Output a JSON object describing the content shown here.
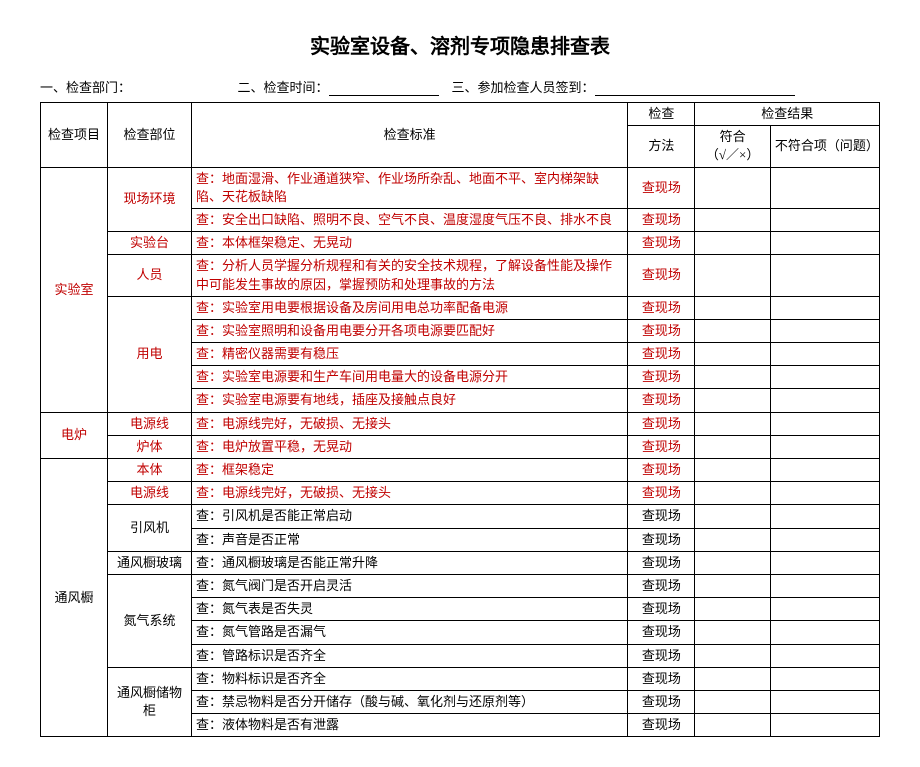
{
  "title": "实验室设备、溶剂专项隐患排查表",
  "info": {
    "dept_label": "一、检查部门：",
    "time_label": "二、检查时间：",
    "sign_label": "三、参加检查人员签到："
  },
  "header": {
    "item": "检查项目",
    "part": "检查部位",
    "standard": "检查标准",
    "method_top": "检查",
    "method_bottom": "方法",
    "result": "检查结果",
    "pass": "符合",
    "pass_sub": "（√／×）",
    "fail": "不符合项（问题）"
  },
  "groups": [
    {
      "item": "实验室",
      "item_red": true,
      "rowspan": 9,
      "parts": [
        {
          "name": "现场环境",
          "name_red": true,
          "rowspan": 2,
          "rows": [
            {
              "std": "查：地面湿滑、作业通道狭窄、作业场所杂乱、地面不平、室内梯架缺陷、天花板缺陷",
              "std_red": true,
              "method": "查现场",
              "method_red": true
            },
            {
              "std": "查：安全出口缺陷、照明不良、空气不良、温度湿度气压不良、排水不良",
              "std_red": true,
              "method": "查现场",
              "method_red": true
            }
          ]
        },
        {
          "name": "实验台",
          "name_red": true,
          "rowspan": 1,
          "rows": [
            {
              "std": "查：本体框架稳定、无晃动",
              "std_red": true,
              "method": "查现场",
              "method_red": true
            }
          ]
        },
        {
          "name": "人员",
          "name_red": true,
          "rowspan": 1,
          "rows": [
            {
              "std": "查：分析人员学握分析规程和有关的安全技术规程，了解设备性能及操作中可能发生事故的原因，掌握预防和处理事故的方法",
              "std_red": true,
              "method": "查现场",
              "method_red": true
            }
          ]
        },
        {
          "name": "用电",
          "name_red": true,
          "rowspan": 5,
          "rows": [
            {
              "std": "查：实验室用电要根据设备及房间用电总功率配备电源",
              "std_red": true,
              "method": "查现场",
              "method_red": true
            },
            {
              "std": "查：实验室照明和设备用电要分开各项电源要匹配好",
              "std_red": true,
              "method": "查现场",
              "method_red": true
            },
            {
              "std": "查：精密仪器需要有稳压",
              "std_red": true,
              "method": "查现场",
              "method_red": true
            },
            {
              "std": "查：实验室电源要和生产车间用电量大的设备电源分开",
              "std_red": true,
              "method": "查现场",
              "method_red": true
            },
            {
              "std": "查：实验室电源要有地线，插座及接触点良好",
              "std_red": true,
              "method": "查现场",
              "method_red": true
            }
          ]
        }
      ]
    },
    {
      "item": "电炉",
      "item_red": true,
      "rowspan": 2,
      "parts": [
        {
          "name": "电源线",
          "name_red": true,
          "rowspan": 1,
          "rows": [
            {
              "std": "查：电源线完好，无破损、无接头",
              "std_red": true,
              "method": "查现场",
              "method_red": true
            }
          ]
        },
        {
          "name": "炉体",
          "name_red": true,
          "rowspan": 1,
          "rows": [
            {
              "std": "查：电炉放置平稳，无晃动",
              "std_red": true,
              "method": "查现场",
              "method_red": true
            }
          ]
        }
      ]
    },
    {
      "item": "通风橱",
      "item_red": false,
      "rowspan": 12,
      "parts": [
        {
          "name": "本体",
          "name_red": true,
          "rowspan": 1,
          "rows": [
            {
              "std": "查：框架稳定",
              "std_red": true,
              "method": "查现场",
              "method_red": true
            }
          ]
        },
        {
          "name": "电源线",
          "name_red": true,
          "rowspan": 1,
          "rows": [
            {
              "std": "查：电源线完好，无破损、无接头",
              "std_red": true,
              "method": "查现场",
              "method_red": true
            }
          ]
        },
        {
          "name": "引风机",
          "name_red": false,
          "rowspan": 2,
          "rows": [
            {
              "std": "查：引风机是否能正常启动",
              "std_red": false,
              "method": "查现场",
              "method_red": false
            },
            {
              "std": "查：声音是否正常",
              "std_red": false,
              "method": "查现场",
              "method_red": false
            }
          ]
        },
        {
          "name": "通风橱玻璃",
          "name_red": false,
          "rowspan": 1,
          "rows": [
            {
              "std": "查：通风橱玻璃是否能正常升降",
              "std_red": false,
              "method": "查现场",
              "method_red": false
            }
          ]
        },
        {
          "name": "氮气系统",
          "name_red": false,
          "rowspan": 4,
          "rows": [
            {
              "std": "查：氮气阀门是否开启灵活",
              "std_red": false,
              "method": "查现场",
              "method_red": false
            },
            {
              "std": "查：氮气表是否失灵",
              "std_red": false,
              "method": "查现场",
              "method_red": false
            },
            {
              "std": "查：氮气管路是否漏气",
              "std_red": false,
              "method": "查现场",
              "method_red": false
            },
            {
              "std": "查：管路标识是否齐全",
              "std_red": false,
              "method": "查现场",
              "method_red": false
            }
          ]
        },
        {
          "name": "通风橱储物柜",
          "name_red": false,
          "rowspan": 3,
          "rows": [
            {
              "std": "查：物料标识是否齐全",
              "std_red": false,
              "method": "查现场",
              "method_red": false
            },
            {
              "std": "查：禁忌物料是否分开储存（酸与碱、氧化剂与还原剂等）",
              "std_red": false,
              "method": "查现场",
              "method_red": false
            },
            {
              "std": "查：液体物料是否有泄露",
              "std_red": false,
              "method": "查现场",
              "method_red": false
            }
          ]
        }
      ]
    }
  ]
}
